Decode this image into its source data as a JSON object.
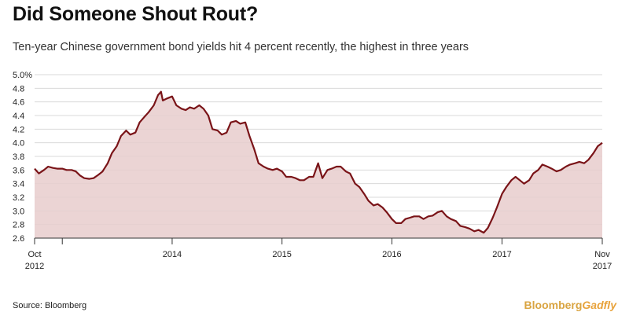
{
  "header": {
    "title": "Did Someone Shout Rout?",
    "subtitle": "Ten-year Chinese government bond yields hit 4 percent recently, the highest in three years"
  },
  "footer": {
    "source": "Source: Bloomberg",
    "brand_part1": "Bloomberg",
    "brand_part2": "Gadfly"
  },
  "colors": {
    "line": "#7a1418",
    "fill": "#e8cccc",
    "grid": "#d9d9d9",
    "axis": "#333333"
  },
  "chart_data": {
    "type": "area",
    "title": "Did Someone Shout Rout?",
    "subtitle": "Ten-year Chinese government bond yields hit 4 percent recently, the highest in three years",
    "xlabel": "",
    "ylabel": "",
    "ylim": [
      2.6,
      5.0
    ],
    "xlim": [
      "2012-10-01",
      "2017-11-30"
    ],
    "grid": true,
    "y_ticks": [
      {
        "value": 5.0,
        "label": "5.0%"
      },
      {
        "value": 4.8,
        "label": "4.8"
      },
      {
        "value": 4.6,
        "label": "4.6"
      },
      {
        "value": 4.4,
        "label": "4.4"
      },
      {
        "value": 4.2,
        "label": "4.2"
      },
      {
        "value": 4.0,
        "label": "4.0"
      },
      {
        "value": 3.8,
        "label": "3.8"
      },
      {
        "value": 3.6,
        "label": "3.6"
      },
      {
        "value": 3.4,
        "label": "3.4"
      },
      {
        "value": 3.2,
        "label": "3.2"
      },
      {
        "value": 3.0,
        "label": "3.0"
      },
      {
        "value": 2.8,
        "label": "2.8"
      },
      {
        "value": 2.6,
        "label": "2.6"
      }
    ],
    "x_ticks": [
      {
        "date": "2012-10-01",
        "label": "Oct",
        "label2": "2012"
      },
      {
        "date": "2013-01-01",
        "label": "",
        "label2": ""
      },
      {
        "date": "2014-01-01",
        "label": "2014",
        "label2": ""
      },
      {
        "date": "2015-01-01",
        "label": "2015",
        "label2": ""
      },
      {
        "date": "2016-01-01",
        "label": "2016",
        "label2": ""
      },
      {
        "date": "2017-01-01",
        "label": "2017",
        "label2": ""
      },
      {
        "date": "2017-11-30",
        "label": "Nov",
        "label2": "2017"
      }
    ],
    "series": [
      {
        "x": [
          "2012-10-01",
          "2012-10-15",
          "2012-11-01",
          "2012-11-15",
          "2012-12-01",
          "2012-12-15",
          "2013-01-01",
          "2013-01-15",
          "2013-02-01",
          "2013-02-15",
          "2013-03-01",
          "2013-03-15",
          "2013-04-01",
          "2013-04-15",
          "2013-05-01",
          "2013-05-15",
          "2013-06-01",
          "2013-06-15",
          "2013-07-01",
          "2013-07-15",
          "2013-08-01",
          "2013-08-15",
          "2013-09-01",
          "2013-09-15",
          "2013-10-01",
          "2013-10-15",
          "2013-11-01",
          "2013-11-15",
          "2013-11-25",
          "2013-12-01",
          "2013-12-15",
          "2014-01-01",
          "2014-01-15",
          "2014-02-01",
          "2014-02-15",
          "2014-03-01",
          "2014-03-15",
          "2014-04-01",
          "2014-04-15",
          "2014-05-01",
          "2014-05-15",
          "2014-06-01",
          "2014-06-15",
          "2014-07-01",
          "2014-07-15",
          "2014-08-01",
          "2014-08-15",
          "2014-09-01",
          "2014-09-15",
          "2014-10-01",
          "2014-10-15",
          "2014-11-01",
          "2014-11-15",
          "2014-12-01",
          "2014-12-15",
          "2015-01-01",
          "2015-01-15",
          "2015-02-01",
          "2015-02-15",
          "2015-03-01",
          "2015-03-15",
          "2015-04-01",
          "2015-04-15",
          "2015-05-01",
          "2015-05-15",
          "2015-06-01",
          "2015-06-15",
          "2015-07-01",
          "2015-07-15",
          "2015-08-01",
          "2015-08-15",
          "2015-09-01",
          "2015-09-15",
          "2015-10-01",
          "2015-10-15",
          "2015-11-01",
          "2015-11-15",
          "2015-12-01",
          "2015-12-15",
          "2016-01-01",
          "2016-01-15",
          "2016-02-01",
          "2016-02-15",
          "2016-03-01",
          "2016-03-15",
          "2016-04-01",
          "2016-04-15",
          "2016-05-01",
          "2016-05-15",
          "2016-06-01",
          "2016-06-15",
          "2016-07-01",
          "2016-07-15",
          "2016-08-01",
          "2016-08-15",
          "2016-09-01",
          "2016-09-15",
          "2016-10-01",
          "2016-10-15",
          "2016-11-01",
          "2016-11-15",
          "2016-12-01",
          "2016-12-15",
          "2017-01-01",
          "2017-01-15",
          "2017-02-01",
          "2017-02-15",
          "2017-03-01",
          "2017-03-15",
          "2017-04-01",
          "2017-04-15",
          "2017-05-01",
          "2017-05-15",
          "2017-06-01",
          "2017-06-15",
          "2017-07-01",
          "2017-07-15",
          "2017-08-01",
          "2017-08-15",
          "2017-09-01",
          "2017-09-15",
          "2017-10-01",
          "2017-10-15",
          "2017-11-01",
          "2017-11-15",
          "2017-11-30"
        ],
        "values": [
          3.62,
          3.55,
          3.6,
          3.65,
          3.63,
          3.62,
          3.62,
          3.6,
          3.6,
          3.58,
          3.52,
          3.48,
          3.47,
          3.48,
          3.53,
          3.58,
          3.7,
          3.85,
          3.95,
          4.1,
          4.18,
          4.12,
          4.15,
          4.3,
          4.38,
          4.45,
          4.55,
          4.7,
          4.75,
          4.62,
          4.65,
          4.68,
          4.55,
          4.5,
          4.48,
          4.52,
          4.5,
          4.55,
          4.5,
          4.4,
          4.2,
          4.18,
          4.12,
          4.15,
          4.3,
          4.32,
          4.28,
          4.3,
          4.1,
          3.9,
          3.7,
          3.65,
          3.62,
          3.6,
          3.62,
          3.58,
          3.5,
          3.5,
          3.48,
          3.45,
          3.45,
          3.5,
          3.5,
          3.7,
          3.48,
          3.6,
          3.62,
          3.65,
          3.65,
          3.58,
          3.55,
          3.4,
          3.35,
          3.25,
          3.15,
          3.08,
          3.1,
          3.05,
          2.98,
          2.88,
          2.82,
          2.82,
          2.88,
          2.9,
          2.92,
          2.92,
          2.88,
          2.92,
          2.93,
          2.98,
          3.0,
          2.92,
          2.88,
          2.85,
          2.78,
          2.76,
          2.74,
          2.7,
          2.72,
          2.68,
          2.75,
          2.9,
          3.05,
          3.25,
          3.35,
          3.45,
          3.5,
          3.45,
          3.4,
          3.45,
          3.55,
          3.6,
          3.68,
          3.65,
          3.62,
          3.58,
          3.6,
          3.65,
          3.68,
          3.7,
          3.72,
          3.7,
          3.75,
          3.85,
          3.95,
          4.0
        ]
      }
    ]
  }
}
